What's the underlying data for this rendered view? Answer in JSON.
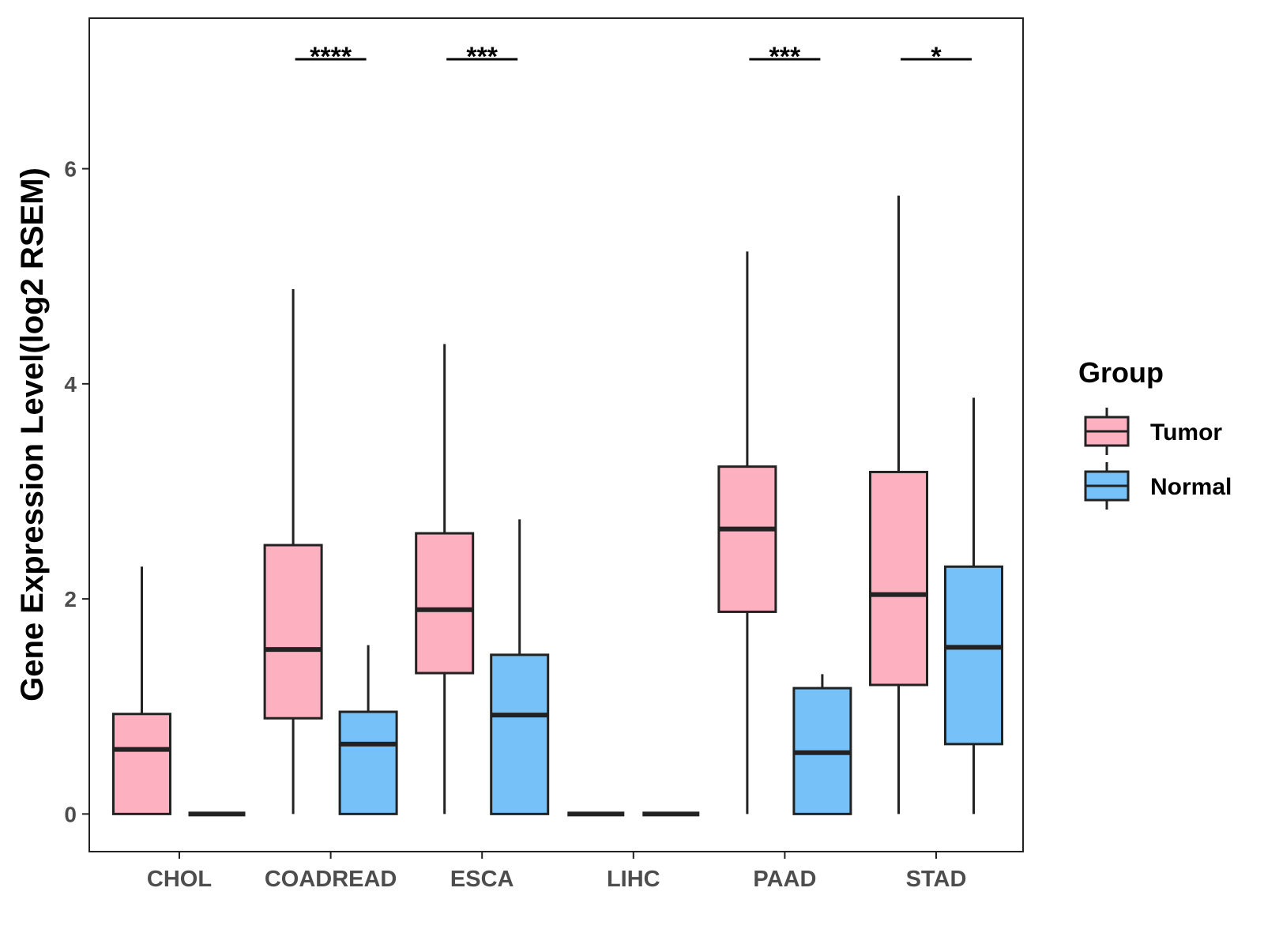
{
  "chart_data": {
    "type": "boxplot",
    "title": "",
    "xlabel": "",
    "ylabel": "Gene Expression Level(log2 RSEM)",
    "ylim": [
      -0.35,
      7.4
    ],
    "yticks": [
      0,
      2,
      4,
      6
    ],
    "grid": false,
    "categories": [
      "CHOL",
      "COADREAD",
      "ESCA",
      "LIHC",
      "PAAD",
      "STAD"
    ],
    "legend": {
      "title": "Group",
      "position": "right",
      "items": [
        {
          "label": "Tumor",
          "color": "#fcb0c0"
        },
        {
          "label": "Normal",
          "color": "#75c1f8"
        }
      ]
    },
    "series": [
      {
        "name": "Tumor",
        "color": "#fcb0c0",
        "boxes": [
          {
            "min": 0,
            "q1": 0,
            "median": 0.6,
            "q3": 0.93,
            "max": 2.3
          },
          {
            "min": 0,
            "q1": 0.89,
            "median": 1.53,
            "q3": 2.5,
            "max": 4.88
          },
          {
            "min": 0,
            "q1": 1.31,
            "median": 1.9,
            "q3": 2.61,
            "max": 4.37
          },
          {
            "min": 0,
            "q1": 0,
            "median": 0,
            "q3": 0,
            "max": 0
          },
          {
            "min": 0,
            "q1": 1.88,
            "median": 2.65,
            "q3": 3.23,
            "max": 5.23
          },
          {
            "min": 0,
            "q1": 1.2,
            "median": 2.04,
            "q3": 3.18,
            "max": 5.75
          }
        ]
      },
      {
        "name": "Normal",
        "color": "#75c1f8",
        "boxes": [
          {
            "min": 0,
            "q1": 0,
            "median": 0,
            "q3": 0,
            "max": 0
          },
          {
            "min": 0,
            "q1": 0,
            "median": 0.65,
            "q3": 0.95,
            "max": 1.57
          },
          {
            "min": 0,
            "q1": 0,
            "median": 0.92,
            "q3": 1.48,
            "max": 2.74
          },
          {
            "min": 0,
            "q1": 0,
            "median": 0,
            "q3": 0,
            "max": 0
          },
          {
            "min": 0,
            "q1": 0,
            "median": 0.57,
            "q3": 1.17,
            "max": 1.3
          },
          {
            "min": 0,
            "q1": 0.65,
            "median": 1.55,
            "q3": 2.3,
            "max": 3.87
          }
        ]
      }
    ],
    "significance": [
      {
        "category": "CHOL",
        "label": ""
      },
      {
        "category": "COADREAD",
        "label": "****"
      },
      {
        "category": "ESCA",
        "label": "***"
      },
      {
        "category": "LIHC",
        "label": ""
      },
      {
        "category": "PAAD",
        "label": "***"
      },
      {
        "category": "STAD",
        "label": "*"
      }
    ]
  }
}
